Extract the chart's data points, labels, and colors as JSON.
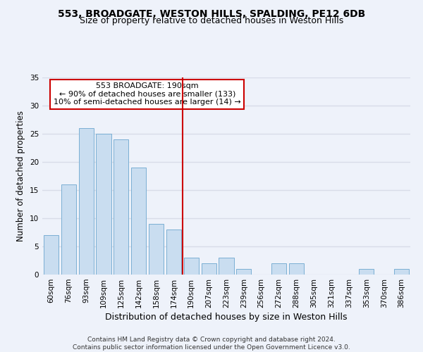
{
  "title": "553, BROADGATE, WESTON HILLS, SPALDING, PE12 6DB",
  "subtitle": "Size of property relative to detached houses in Weston Hills",
  "xlabel": "Distribution of detached houses by size in Weston Hills",
  "ylabel": "Number of detached properties",
  "bar_labels": [
    "60sqm",
    "76sqm",
    "93sqm",
    "109sqm",
    "125sqm",
    "142sqm",
    "158sqm",
    "174sqm",
    "190sqm",
    "207sqm",
    "223sqm",
    "239sqm",
    "256sqm",
    "272sqm",
    "288sqm",
    "305sqm",
    "321sqm",
    "337sqm",
    "353sqm",
    "370sqm",
    "386sqm"
  ],
  "bar_values": [
    7,
    16,
    26,
    25,
    24,
    19,
    9,
    8,
    3,
    2,
    3,
    1,
    0,
    2,
    2,
    0,
    0,
    0,
    1,
    0,
    1
  ],
  "bar_color": "#c9ddf0",
  "bar_edge_color": "#7aafd4",
  "reference_line_x": 7.5,
  "reference_line_color": "#cc0000",
  "annotation_text": "553 BROADGATE: 190sqm\n← 90% of detached houses are smaller (133)\n10% of semi-detached houses are larger (14) →",
  "annotation_box_color": "#ffffff",
  "annotation_box_edge_color": "#cc0000",
  "ylim": [
    0,
    35
  ],
  "yticks": [
    0,
    5,
    10,
    15,
    20,
    25,
    30,
    35
  ],
  "background_color": "#eef2fa",
  "grid_color": "#d8dce8",
  "footer_text": "Contains HM Land Registry data © Crown copyright and database right 2024.\nContains public sector information licensed under the Open Government Licence v3.0.",
  "title_fontsize": 10,
  "subtitle_fontsize": 9,
  "xlabel_fontsize": 9,
  "ylabel_fontsize": 8.5,
  "tick_fontsize": 7.5,
  "annotation_fontsize": 8,
  "footer_fontsize": 6.5
}
